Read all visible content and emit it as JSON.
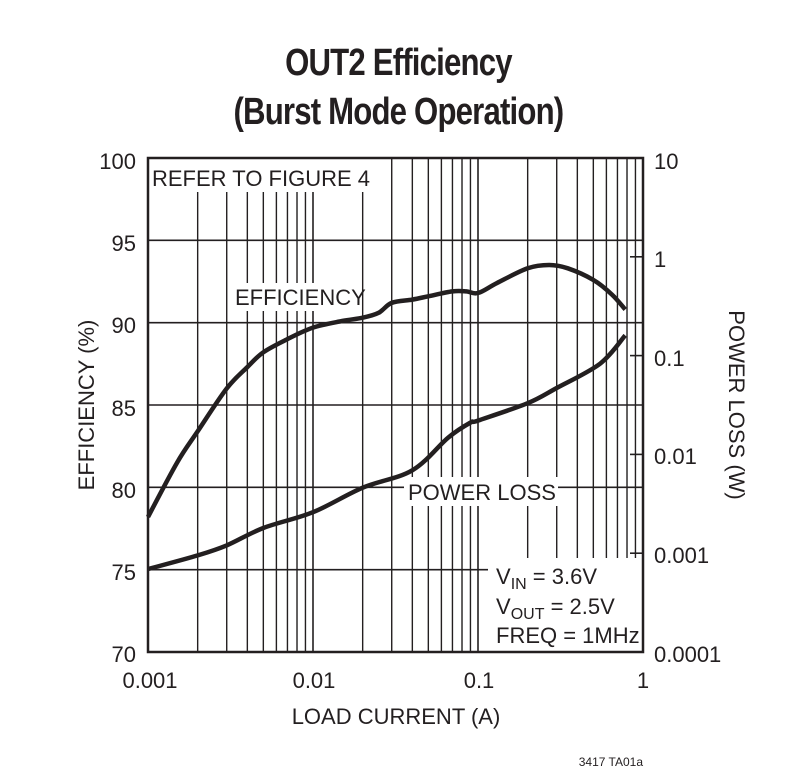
{
  "chart_data": {
    "type": "line",
    "title": "OUT2 Efficiency",
    "subtitle": "(Burst Mode Operation)",
    "xlabel": "LOAD CURRENT (A)",
    "ylabel": "EFFICIENCY (%)",
    "y2label": "POWER LOSS (W)",
    "xscale": "log",
    "xlim": [
      0.001,
      1
    ],
    "ylim": [
      70,
      100
    ],
    "y2scale": "log",
    "y2lim": [
      0.0001,
      10
    ],
    "x_ticks": [
      "0.001",
      "0.01",
      "0.1",
      "1"
    ],
    "y_ticks": [
      "70",
      "75",
      "80",
      "85",
      "90",
      "95",
      "100"
    ],
    "y2_ticks": [
      "0.0001",
      "0.001",
      "0.01",
      "0.1",
      "1",
      "10"
    ],
    "grid": true,
    "series": [
      {
        "name": "EFFICIENCY",
        "axis": "left",
        "x": [
          0.001,
          0.0015,
          0.002,
          0.003,
          0.004,
          0.005,
          0.007,
          0.01,
          0.015,
          0.02,
          0.025,
          0.03,
          0.04,
          0.05,
          0.07,
          0.085,
          0.1,
          0.13,
          0.2,
          0.27,
          0.35,
          0.5,
          0.65,
          0.78
        ],
        "values": [
          78.2,
          81.5,
          83.4,
          86.0,
          87.3,
          88.2,
          89.0,
          89.7,
          90.1,
          90.3,
          90.6,
          91.2,
          91.4,
          91.6,
          91.9,
          91.9,
          91.8,
          92.4,
          93.3,
          93.5,
          93.3,
          92.6,
          91.7,
          90.8
        ]
      },
      {
        "name": "POWER LOSS",
        "axis": "right",
        "x": [
          0.001,
          0.002,
          0.003,
          0.005,
          0.01,
          0.02,
          0.04,
          0.066,
          0.09,
          0.1,
          0.2,
          0.3,
          0.55,
          0.78
        ],
        "values": [
          0.00069,
          0.00095,
          0.0012,
          0.0018,
          0.0026,
          0.0046,
          0.0069,
          0.0148,
          0.021,
          0.022,
          0.033,
          0.047,
          0.083,
          0.16
        ]
      }
    ],
    "annotations": [
      "REFER TO FIGURE 4",
      "EFFICIENCY",
      "POWER LOSS"
    ],
    "conditions": {
      "vin": "V_IN = 3.6V",
      "vout": "V_OUT = 2.5V",
      "freq": "FREQ = 1MHz"
    },
    "footer": "3417 TA01a"
  },
  "labels": {
    "title": "OUT2 Efficiency",
    "subtitle": "(Burst Mode Operation)",
    "xlabel": "LOAD CURRENT (A)",
    "ylabel": "EFFICIENCY (%)",
    "y2label": "POWER LOSS (W)",
    "refer": "REFER TO FIGURE 4",
    "eff_label": "EFFICIENCY",
    "loss_label": "POWER LOSS",
    "vin_v": "V",
    "vin_sub": "IN",
    "vin_val": " = 3.6V",
    "vout_v": "V",
    "vout_sub": "OUT",
    "vout_val": " = 2.5V",
    "freq": "FREQ = 1MHz",
    "footer": "3417 TA01a",
    "x_ticks": [
      "0.001",
      "0.01",
      "0.1",
      "1"
    ],
    "y_ticks": [
      "100",
      "95",
      "90",
      "85",
      "80",
      "75",
      "70"
    ],
    "y2_ticks": [
      "10",
      "1",
      "0.1",
      "0.01",
      "0.001",
      "0.0001"
    ]
  }
}
